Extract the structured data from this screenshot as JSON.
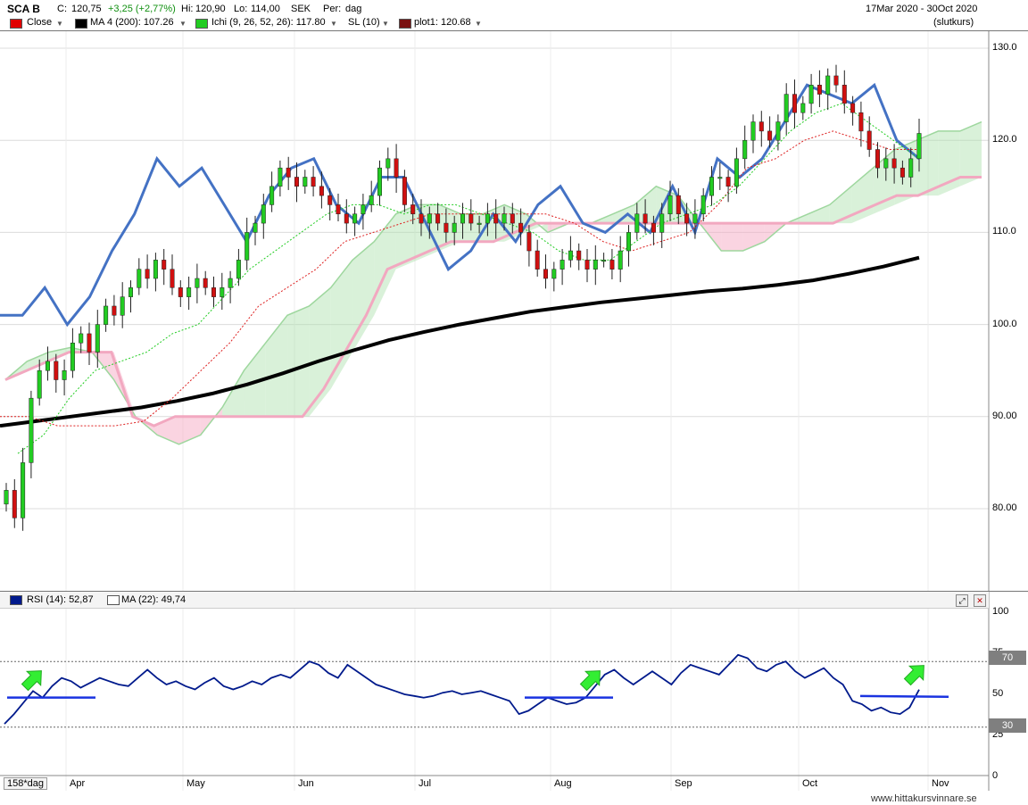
{
  "header": {
    "symbol": "SCA B",
    "close_label": "C:",
    "close_value": "120,75",
    "change": "+3,25 (+2,77%)",
    "high_label": "Hi:",
    "high_value": "120,90",
    "low_label": "Lo:",
    "low_value": "114,00",
    "currency": "SEK",
    "period_label": "Per:",
    "period_value": "dag",
    "date_range": "17Mar 2020 - 30Oct 2020",
    "price_type": "(slutkurs)"
  },
  "legend": [
    {
      "label": "Close",
      "color": "#e00000"
    },
    {
      "label": "MA 4 (200): 107.26",
      "color": "#000000"
    },
    {
      "label": "Ichi (9, 26, 52, 26): 117.80",
      "color": "#22cc22"
    },
    {
      "label": "SL (10)",
      "color": "#dddddd"
    },
    {
      "label": "plot1: 120.68",
      "color": "#7a1010"
    }
  ],
  "rsi_legend": [
    {
      "label": "RSI (14): 52,87",
      "color": "#001a8c"
    },
    {
      "label": "MA (22): 49,74",
      "color": "#ffffff"
    }
  ],
  "rsi_levels": {
    "upper": "70",
    "lower": "30"
  },
  "period_count": "158*dag",
  "footer": "www.hittakursvinnare.se",
  "chart_data": [
    {
      "type": "candlestick",
      "title": "SCA B",
      "x_labels": [
        "Apr",
        "May",
        "Jun",
        "Jul",
        "Aug",
        "Sep",
        "Oct",
        "Nov"
      ],
      "y_ticks": [
        "80.00",
        "90.00",
        "100.0",
        "110.0",
        "120.0",
        "130.0"
      ],
      "ylim": [
        74,
        133
      ],
      "close": [
        82,
        79,
        85,
        92,
        95,
        96,
        94,
        95,
        98,
        99,
        97,
        100,
        102,
        101,
        103,
        104,
        106,
        105,
        107,
        106,
        104,
        103,
        104,
        105,
        104,
        103,
        104,
        105,
        107,
        110,
        111,
        113,
        115,
        117,
        116,
        115,
        116,
        115,
        114,
        113,
        112,
        111,
        112,
        113,
        114,
        117,
        118,
        116,
        113,
        112,
        111,
        112,
        111,
        110,
        111,
        112,
        111,
        111,
        112,
        111,
        112,
        111,
        110,
        108,
        106,
        105,
        106,
        107,
        108,
        107,
        106,
        107,
        107,
        106,
        108,
        110,
        112,
        111,
        110,
        112,
        114,
        112,
        111,
        112,
        114,
        116,
        116,
        115,
        118,
        120,
        122,
        121,
        120,
        122,
        125,
        123,
        124,
        126,
        125,
        127,
        126,
        124,
        123,
        121,
        119,
        117,
        118,
        117,
        116,
        118,
        120.75
      ],
      "ma200": [
        89,
        89.5,
        90,
        90.5,
        91,
        91.7,
        92.5,
        93.5,
        94.7,
        96,
        97.2,
        98.3,
        99.2,
        100,
        100.7,
        101.4,
        101.9,
        102.4,
        102.8,
        103.2,
        103.6,
        103.9,
        104.3,
        104.8,
        105.5,
        106.3,
        107.26
      ],
      "ichimoku_span_a": [
        94,
        96,
        97,
        97.5,
        97,
        94,
        90,
        88,
        87,
        88,
        91,
        95,
        98,
        101,
        102,
        104,
        107,
        109,
        112,
        113,
        113,
        112,
        112,
        113,
        112,
        110,
        111,
        111,
        112,
        113,
        115,
        114,
        111,
        108,
        108,
        109,
        111,
        112,
        113,
        115,
        117,
        119,
        120,
        121,
        121,
        122
      ],
      "ichimoku_span_b": [
        94,
        95,
        96,
        97,
        97,
        97,
        90,
        89,
        90,
        90,
        90,
        90,
        90,
        90,
        90,
        93,
        97,
        101,
        106,
        107,
        108,
        109,
        109,
        109,
        110,
        111,
        111,
        111,
        111,
        111,
        111,
        111,
        111,
        111,
        111,
        111,
        111,
        111,
        111,
        111,
        112,
        113,
        114,
        114,
        115,
        116,
        116
      ],
      "ichimoku_tenkan": [
        86,
        88,
        92,
        95,
        96,
        97,
        99,
        100,
        103,
        106,
        108,
        110,
        112,
        113,
        113,
        112,
        113,
        113,
        112,
        111,
        110,
        108,
        107,
        107,
        109,
        111,
        112,
        113,
        115,
        118,
        121,
        123,
        124,
        122,
        120,
        118
      ],
      "ichimoku_kijun": [
        90,
        90,
        89,
        89,
        89,
        89.5,
        92,
        95,
        98,
        102,
        104,
        106,
        109,
        110,
        111,
        112,
        112,
        112,
        112,
        112,
        111,
        109,
        108,
        109,
        110,
        113,
        117,
        118,
        120,
        121,
        120,
        119,
        119
      ],
      "plot1": [
        101,
        101,
        104,
        100,
        103,
        108,
        112,
        118,
        115,
        117,
        113,
        109,
        114,
        117,
        118,
        113,
        111,
        116,
        116,
        111,
        106,
        108,
        112,
        109,
        113,
        115,
        111,
        110,
        112,
        110,
        115,
        110,
        118,
        116,
        118,
        122,
        126,
        125,
        124,
        126,
        120,
        118
      ]
    },
    {
      "type": "line",
      "title": "RSI (14)",
      "y_ticks": [
        "0",
        "25",
        "50",
        "75",
        "100"
      ],
      "ylim": [
        0,
        100
      ],
      "levels": [
        70,
        30
      ],
      "series": [
        {
          "name": "RSI (14)",
          "values": [
            32,
            38,
            45,
            52,
            48,
            55,
            60,
            58,
            54,
            57,
            60,
            58,
            56,
            55,
            60,
            65,
            60,
            56,
            58,
            55,
            53,
            57,
            60,
            55,
            53,
            55,
            58,
            56,
            60,
            62,
            60,
            65,
            70,
            68,
            63,
            60,
            68,
            64,
            60,
            56,
            54,
            52,
            50,
            49,
            48,
            49,
            51,
            52,
            50,
            51,
            52,
            50,
            48,
            46,
            38,
            40,
            44,
            48,
            46,
            44,
            45,
            48,
            55,
            62,
            65,
            60,
            56,
            60,
            64,
            60,
            56,
            63,
            68,
            66,
            64,
            62,
            68,
            74,
            72,
            66,
            64,
            68,
            70,
            64,
            60,
            63,
            66,
            60,
            56,
            46,
            44,
            40,
            42,
            39,
            38,
            42,
            52.87
          ]
        }
      ]
    }
  ]
}
